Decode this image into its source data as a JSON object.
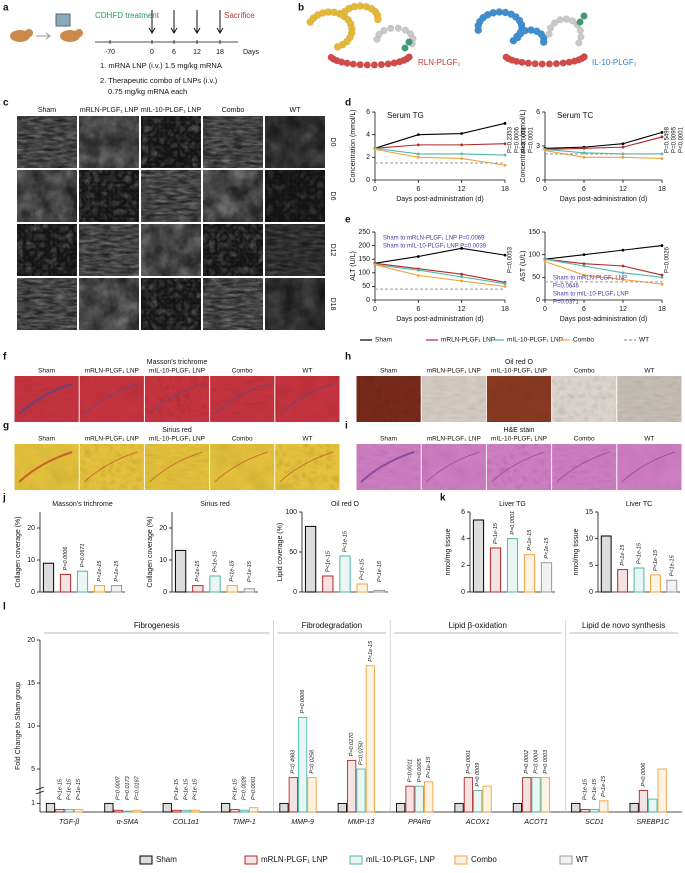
{
  "panel_labels": [
    "a",
    "b",
    "c",
    "d",
    "e",
    "f",
    "g",
    "h",
    "i",
    "j",
    "k",
    "l"
  ],
  "timeline": {
    "treatment": "CDHFD treatment",
    "sacrifice": "Sacrifice",
    "days": [
      "-70",
      "0",
      "6",
      "12",
      "18"
    ],
    "unit": "Days",
    "protocol": [
      "1. mRNA LNP (i.v.) 1.5 mg/kg mRNA",
      "2. Therapeutic combo of LNPs (i.v.)",
      "0.75 mg/kg mRNA each"
    ]
  },
  "structures": {
    "labels": [
      "RLN-PLGF₁",
      "IL-10-PLGF₁"
    ]
  },
  "ultrasound": {
    "columns": [
      "Sham",
      "mRLN-PLGF₁ LNP",
      "mIL-10-PLGF₁ LNP",
      "Combo",
      "WT"
    ],
    "rows": [
      "D0",
      "D6",
      "D12",
      "D18"
    ]
  },
  "histology": [
    {
      "title": "Masson's trichrome",
      "columns": [
        "Sham",
        "mRLN-PLGF₁ LNP",
        "mIL-10-PLGF₁ LNP",
        "Combo",
        "WT"
      ]
    },
    {
      "title": "Sirius red",
      "columns": [
        "Sham",
        "mRLN-PLGF₁ LNP",
        "mIL-10-PLGF₁ LNP",
        "Combo",
        "WT"
      ]
    },
    {
      "title": "Oil red O",
      "columns": [
        "Sham",
        "mRLN-PLGF₁ LNP",
        "mIL-10-PLGF₁ LNP",
        "Combo",
        "WT"
      ]
    },
    {
      "title": "H&E stain",
      "columns": [
        "Sham",
        "mRLN-PLGF₁ LNP",
        "mIL-10-PLGF₁ LNP",
        "Combo",
        "WT"
      ]
    }
  ],
  "chart_data": [
    {
      "type": "line",
      "title": "Serum TG",
      "ylabel": "Concentration (mmol/L)",
      "xlabel": "Days post-administration (d)",
      "x": [
        0,
        6,
        12,
        18
      ],
      "xlim": [
        0,
        18
      ],
      "xticks": [
        0,
        6,
        12,
        18
      ],
      "ylim": [
        0,
        6
      ],
      "yticks": [
        0,
        2,
        4,
        6
      ],
      "series": [
        {
          "name": "Sham",
          "color": "#000000",
          "values": [
            2.8,
            4.0,
            4.1,
            5.0
          ]
        },
        {
          "name": "mRLN-PLGF₁ LNP",
          "color": "#b22a2a",
          "values": [
            2.8,
            3.1,
            3.1,
            3.2
          ]
        },
        {
          "name": "mIL-10-PLGF₁ LNP",
          "color": "#4fb8a9",
          "values": [
            2.8,
            2.3,
            2.3,
            2.2
          ]
        },
        {
          "name": "Combo",
          "color": "#f2a23c",
          "values": [
            2.7,
            2.0,
            1.9,
            1.3
          ]
        },
        {
          "name": "WT",
          "color": "#9a9a9a",
          "linestyle": "dashed",
          "values": [
            1.5,
            1.5,
            1.5,
            1.5
          ]
        }
      ],
      "annotations": [
        "P=0.2353",
        "P=0.0006",
        "P<0.0001",
        "P=0.0001"
      ]
    },
    {
      "type": "line",
      "title": "Serum TC",
      "ylabel": "Concentration (mmol/L)",
      "xlabel": "Days post-administration (d)",
      "x": [
        0,
        6,
        12,
        18
      ],
      "xlim": [
        0,
        18
      ],
      "xticks": [
        0,
        6,
        12,
        18
      ],
      "ylim": [
        0,
        6
      ],
      "yticks": [
        0,
        3,
        6
      ],
      "series": [
        {
          "name": "Sham",
          "color": "#000000",
          "values": [
            2.8,
            2.9,
            3.2,
            4.2
          ]
        },
        {
          "name": "mRLN-PLGF₁ LNP",
          "color": "#b22a2a",
          "values": [
            2.7,
            2.8,
            2.9,
            3.8
          ]
        },
        {
          "name": "mIL-10-PLGF₁ LNP",
          "color": "#4fb8a9",
          "values": [
            2.7,
            2.4,
            2.3,
            2.3
          ]
        },
        {
          "name": "Combo",
          "color": "#f2a23c",
          "values": [
            2.6,
            2.0,
            2.0,
            1.9
          ]
        },
        {
          "name": "WT",
          "color": "#9a9a9a",
          "linestyle": "dashed",
          "values": [
            2.3,
            2.3,
            2.3,
            2.3
          ]
        }
      ],
      "annotations": [
        "P=0.5498",
        "P=0.0095",
        "P<0.0001"
      ]
    },
    {
      "type": "line",
      "ylabel": "ALT (U/L)",
      "xlabel": "Days post-administration (d)",
      "x": [
        0,
        6,
        12,
        18
      ],
      "xlim": [
        0,
        18
      ],
      "xticks": [
        0,
        6,
        12,
        18
      ],
      "ylim": [
        0,
        250
      ],
      "yticks": [
        0,
        50,
        100,
        150,
        200,
        250
      ],
      "series": [
        {
          "name": "Sham",
          "color": "#000000",
          "values": [
            135,
            160,
            190,
            165
          ]
        },
        {
          "name": "mRLN-PLGF₁ LNP",
          "color": "#b22a2a",
          "values": [
            135,
            115,
            95,
            65
          ]
        },
        {
          "name": "mIL-10-PLGF₁ LNP",
          "color": "#4fb8a9",
          "values": [
            130,
            110,
            85,
            60
          ]
        },
        {
          "name": "Combo",
          "color": "#f2a23c",
          "values": [
            130,
            90,
            70,
            50
          ]
        },
        {
          "name": "WT",
          "color": "#9a9a9a",
          "linestyle": "dashed",
          "values": [
            40,
            40,
            40,
            40
          ]
        }
      ],
      "annotations": [
        {
          "text": "Sham to mRLN-PLGF₁ LNP P=0.0069",
          "color": "#4b35a8"
        },
        {
          "text": "Sham to mIL-10-PLGF₁ LNP P=0.0039",
          "color": "#4b35a8"
        },
        "P=0.0053"
      ]
    },
    {
      "type": "line",
      "ylabel": "AST (U/L)",
      "xlabel": "Days post-administration (d)",
      "x": [
        0,
        6,
        12,
        18
      ],
      "xlim": [
        0,
        18
      ],
      "xticks": [
        0,
        6,
        12,
        18
      ],
      "ylim": [
        0,
        150
      ],
      "yticks": [
        0,
        50,
        100,
        150
      ],
      "series": [
        {
          "name": "Sham",
          "color": "#000000",
          "values": [
            90,
            100,
            110,
            120
          ]
        },
        {
          "name": "mRLN-PLGF₁ LNP",
          "color": "#b22a2a",
          "values": [
            90,
            80,
            75,
            55
          ]
        },
        {
          "name": "mIL-10-PLGF₁ LNP",
          "color": "#4fb8a9",
          "values": [
            90,
            75,
            60,
            50
          ]
        },
        {
          "name": "Combo",
          "color": "#f2a23c",
          "values": [
            85,
            55,
            45,
            35
          ]
        },
        {
          "name": "WT",
          "color": "#9a9a9a",
          "linestyle": "dashed",
          "values": [
            40,
            40,
            40,
            40
          ]
        }
      ],
      "annotations": [
        "P=0.0026",
        {
          "text": "Sham to mRLN-PLGF₁ LNP",
          "color": "#4b35a8"
        },
        {
          "text": "P=0.0646",
          "color": "#4b35a8"
        },
        {
          "text": "Sham to mIL-10-PLGF₁ LNP",
          "color": "#4b35a8"
        },
        {
          "text": "P=0.0371",
          "color": "#4b35a8"
        }
      ]
    },
    {
      "type": "bar",
      "title": "Masson's trichrome",
      "ylabel": "Collagen coverage (%)",
      "ylim": [
        0,
        25
      ],
      "yticks": [
        0,
        10,
        20
      ],
      "values": [
        9,
        5.5,
        6.5,
        2,
        2
      ],
      "colors": [
        "#000000",
        "#b22a2a",
        "#4fb8a9",
        "#f2a23c",
        "#9a9a9a"
      ],
      "annotations": [
        "P=0.0006",
        "P=0.0671",
        "P<1e-15",
        "P<1e-15"
      ]
    },
    {
      "type": "bar",
      "title": "Sirius red",
      "ylabel": "Collagen coverage (%)",
      "ylim": [
        0,
        25
      ],
      "yticks": [
        0,
        10,
        20
      ],
      "values": [
        13,
        2,
        5,
        2,
        1
      ],
      "colors": [
        "#000000",
        "#b22a2a",
        "#4fb8a9",
        "#f2a23c",
        "#9a9a9a"
      ],
      "annotations": [
        "P<1e-15",
        "P<1e-15",
        "P<1e-15",
        "P<1e-15"
      ]
    },
    {
      "type": "bar",
      "title": "Oil red O",
      "ylabel": "Lipid coverage (%)",
      "ylim": [
        0,
        100
      ],
      "yticks": [
        0,
        50,
        100
      ],
      "values": [
        82,
        20,
        45,
        10,
        2
      ],
      "colors": [
        "#000000",
        "#b22a2a",
        "#4fb8a9",
        "#f2a23c",
        "#9a9a9a"
      ],
      "annotations": [
        "P<1e-15",
        "P<1e-15",
        "P<1e-15",
        "P<1e-15"
      ]
    },
    {
      "type": "bar",
      "title": "Liver TG",
      "ylabel": "nmol/mg tissue",
      "ylim": [
        0,
        6
      ],
      "yticks": [
        0,
        2,
        4,
        6
      ],
      "values": [
        5.4,
        3.3,
        4.0,
        2.8,
        2.2
      ],
      "colors": [
        "#000000",
        "#b22a2a",
        "#4fb8a9",
        "#f2a23c",
        "#9a9a9a"
      ],
      "annotations": [
        "P<1e-15",
        "P=0.0001",
        "P<1e-15",
        "P<1e-15"
      ]
    },
    {
      "type": "bar",
      "title": "Liver TC",
      "ylabel": "nmol/mg tissue",
      "ylim": [
        0,
        15
      ],
      "yticks": [
        0,
        5,
        10,
        15
      ],
      "values": [
        10.5,
        4.2,
        4.5,
        3.2,
        2.2
      ],
      "colors": [
        "#000000",
        "#b22a2a",
        "#4fb8a9",
        "#f2a23c",
        "#9a9a9a"
      ],
      "annotations": [
        "P<1e-15",
        "P<1e-15",
        "P<1e-15",
        "P<1e-15"
      ]
    },
    {
      "type": "grouped_bar",
      "ylabel": "Fold Change to Sham group",
      "ylim": [
        0,
        20
      ],
      "yticks": [
        1,
        5,
        10,
        15,
        20
      ],
      "groups": [
        "Fibrogenesis",
        "Fibrodegradation",
        "Lipid β-oxidation",
        "Lipid de novo synthesis"
      ],
      "categories": [
        "TGF-β",
        "α-SMA",
        "COL1α1",
        "TIMP-1",
        "MMP-9",
        "MMP-13",
        "PPARα",
        "ACOX1",
        "ACOT1",
        "SCD1",
        "SREBP1C"
      ],
      "series": [
        {
          "name": "Sham",
          "color": "#000000",
          "values": [
            1,
            1,
            1,
            1,
            1,
            1,
            1,
            1,
            1,
            1,
            1
          ]
        },
        {
          "name": "mRLN-PLGF₁ LNP",
          "color": "#b22a2a",
          "values": [
            0.3,
            0.2,
            0.2,
            0.3,
            4,
            6,
            3,
            4,
            4,
            0.3,
            2.5
          ]
        },
        {
          "name": "mIL-10-PLGF₁ LNP",
          "color": "#4fb8a9",
          "values": [
            0.3,
            0.1,
            0.2,
            0.2,
            11,
            5,
            3,
            2.5,
            4,
            0.3,
            1.5
          ]
        },
        {
          "name": "Combo",
          "color": "#f2a23c",
          "values": [
            0.3,
            0.2,
            0.2,
            0.5,
            4,
            17,
            3.5,
            3,
            4,
            1.3,
            5
          ]
        },
        {
          "name": "WT",
          "color": "#9a9a9a",
          "values": [
            null,
            null,
            null,
            null,
            null,
            null,
            null,
            null,
            null,
            null,
            null
          ]
        }
      ],
      "p_values": [
        [
          "P<1e-15",
          "P<1e-15",
          "P<1e-15"
        ],
        [
          "P=0.0007",
          "P=0.0173",
          "P=0.0187"
        ],
        [
          "P<1e-15",
          "P<1e-15",
          "P<1e-15"
        ],
        [
          "P<1e-15",
          "P=0.0028",
          "P=0.0001"
        ],
        [
          "P=0.4983",
          "P=0.0006",
          "P=0.0258"
        ],
        [
          "P=0.0270",
          "P=0.0750",
          "P<1e-15"
        ],
        [
          "P=0.0011",
          "P=0.0005",
          "P<1e-15"
        ],
        [
          "P=0.0001",
          "P=0.0009"
        ],
        [
          "P=0.0002",
          "P=0.0004",
          "P=0.0003"
        ],
        [
          "P<1e-15",
          "P<1e-15",
          "P<1e-15"
        ],
        [
          "P=0.0006"
        ]
      ]
    }
  ]
}
